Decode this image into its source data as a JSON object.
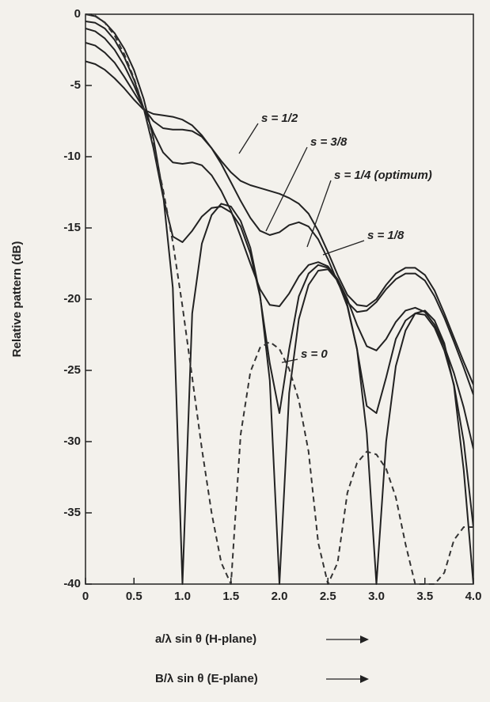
{
  "chart_data": {
    "type": "line",
    "ylabel": "Relative pattern (dB)",
    "xlabel": [
      "a/λ sin θ (H-plane)",
      "B/λ sin θ (E-plane)"
    ],
    "x": [
      0,
      0.1,
      0.2,
      0.3,
      0.4,
      0.5,
      0.6,
      0.7,
      0.8,
      0.9,
      1.0,
      1.1,
      1.2,
      1.3,
      1.4,
      1.5,
      1.6,
      1.7,
      1.8,
      1.9,
      2.0,
      2.1,
      2.2,
      2.3,
      2.4,
      2.5,
      2.6,
      2.7,
      2.8,
      2.9,
      3.0,
      3.1,
      3.2,
      3.3,
      3.4,
      3.5,
      3.6,
      3.7,
      3.8,
      3.9,
      4.0
    ],
    "xlim": [
      0,
      4
    ],
    "xticks": [
      0,
      0.5,
      {
        "value": 1,
        "label": "1.0"
      },
      1.5,
      {
        "value": 2,
        "label": "2.0"
      },
      2.5,
      {
        "value": 3,
        "label": "3.0"
      },
      3.5,
      {
        "value": 4,
        "label": "4.0"
      }
    ],
    "ylim": [
      -40,
      0
    ],
    "yticks": [
      0,
      -5,
      -10,
      -15,
      -20,
      -25,
      -30,
      -35,
      -40
    ],
    "series": [
      {
        "name": "s = 1/2",
        "color": "#222222",
        "values": [
          -3.3,
          -3.5,
          -3.9,
          -4.5,
          -5.2,
          -6.0,
          -6.7,
          -7.0,
          -7.1,
          -7.2,
          -7.4,
          -7.8,
          -8.5,
          -9.4,
          -10.3,
          -11.1,
          -11.7,
          -12.0,
          -12.2,
          -12.4,
          -12.6,
          -12.9,
          -13.3,
          -14.0,
          -15.2,
          -16.7,
          -18.3,
          -19.7,
          -20.4,
          -20.5,
          -20.0,
          -19.0,
          -18.2,
          -17.8,
          -17.8,
          -18.3,
          -19.4,
          -21.0,
          -22.7,
          -24.4,
          -26.0
        ]
      },
      {
        "name": "s = 3/8",
        "color": "#222222",
        "values": [
          -2.0,
          -2.2,
          -2.7,
          -3.4,
          -4.4,
          -5.5,
          -6.6,
          -7.5,
          -8.0,
          -8.1,
          -8.1,
          -8.2,
          -8.6,
          -9.4,
          -10.5,
          -11.8,
          -13.1,
          -14.3,
          -15.2,
          -15.5,
          -15.3,
          -14.8,
          -14.6,
          -14.9,
          -15.8,
          -17.2,
          -18.8,
          -20.2,
          -20.9,
          -20.8,
          -20.2,
          -19.3,
          -18.6,
          -18.2,
          -18.2,
          -18.7,
          -19.8,
          -21.3,
          -23.0,
          -24.8,
          -26.7
        ]
      },
      {
        "name": "s = 1/4 (optimum)",
        "color": "#222222",
        "values": [
          -1.0,
          -1.2,
          -1.7,
          -2.5,
          -3.6,
          -5.0,
          -6.6,
          -8.3,
          -9.7,
          -10.4,
          -10.5,
          -10.4,
          -10.6,
          -11.3,
          -12.4,
          -13.8,
          -15.6,
          -17.5,
          -19.3,
          -20.4,
          -20.5,
          -19.6,
          -18.4,
          -17.6,
          -17.4,
          -17.7,
          -18.6,
          -20.0,
          -21.8,
          -23.3,
          -23.6,
          -22.8,
          -21.6,
          -20.8,
          -20.6,
          -20.9,
          -21.8,
          -23.3,
          -25.2,
          -27.6,
          -30.5
        ]
      },
      {
        "name": "s = 1/8",
        "color": "#222222",
        "values": [
          -0.5,
          -0.6,
          -1.0,
          -1.8,
          -3.0,
          -4.6,
          -6.6,
          -9.4,
          -12.8,
          -15.6,
          -16.0,
          -15.2,
          -14.2,
          -13.6,
          -13.5,
          -13.9,
          -14.9,
          -16.8,
          -19.8,
          -24.5,
          -28.0,
          -23.5,
          -19.8,
          -18.2,
          -17.6,
          -17.8,
          -18.7,
          -20.5,
          -23.5,
          -27.5,
          -28.0,
          -25.5,
          -22.8,
          -21.5,
          -21.0,
          -21.1,
          -22.0,
          -23.6,
          -26.0,
          -30.0,
          -36.0
        ]
      },
      {
        "name": "s = 0",
        "color": "#222222",
        "values": [
          0,
          -0.14,
          -0.58,
          -1.33,
          -2.42,
          -3.92,
          -5.94,
          -8.7,
          -12.6,
          -19.2,
          -40,
          -21.0,
          -16.1,
          -14.1,
          -13.3,
          -13.5,
          -14.5,
          -16.4,
          -19.7,
          -25.7,
          -40,
          -26.6,
          -21.4,
          -19.0,
          -18.0,
          -17.9,
          -18.7,
          -20.4,
          -23.5,
          -29.4,
          -40,
          -30.0,
          -24.7,
          -22.2,
          -21.0,
          -20.8,
          -21.5,
          -23.1,
          -26.1,
          -32.0,
          -40
        ]
      },
      {
        "color": "#333333",
        "dashed": true,
        "values": [
          0,
          -0.1,
          -0.6,
          -1.5,
          -2.8,
          -4.5,
          -6.6,
          -9.2,
          -12.3,
          -16.0,
          -20.5,
          -25.5,
          -30.5,
          -35.0,
          -38.5,
          -40,
          -29.5,
          -25.1,
          -23.4,
          -23.0,
          -23.5,
          -24.9,
          -27.1,
          -30.7,
          -37.1,
          -40,
          -38.5,
          -33.6,
          -31.5,
          -30.7,
          -30.9,
          -31.9,
          -33.9,
          -37.2,
          -40,
          -40,
          -40,
          -39.2,
          -36.9,
          -36.0,
          -36.0
        ]
      }
    ]
  }
}
